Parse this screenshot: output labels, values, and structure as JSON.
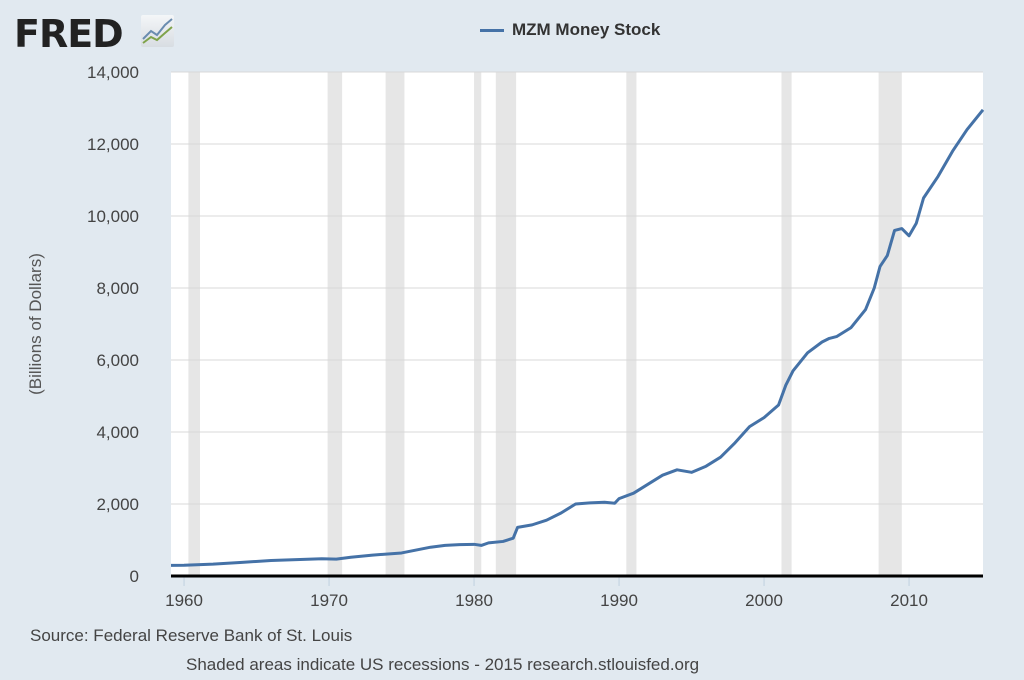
{
  "header": {
    "logo": "FRED",
    "legend": "MZM Money Stock"
  },
  "footer": {
    "source": "Source: Federal Reserve Bank of St. Louis",
    "note": "Shaded areas indicate US recessions - 2015 research.stlouisfed.org"
  },
  "chart_data": {
    "type": "line",
    "title": "MZM Money Stock",
    "xlabel": "",
    "ylabel": "(Billions of Dollars)",
    "xlim": [
      1959.1,
      2015.1
    ],
    "ylim": [
      0,
      14000
    ],
    "xticks": [
      1960,
      1970,
      1980,
      1990,
      2000,
      2010
    ],
    "yticks": [
      0,
      2000,
      4000,
      6000,
      8000,
      10000,
      12000,
      14000
    ],
    "ytick_labels": [
      "0",
      "2,000",
      "4,000",
      "6,000",
      "8,000",
      "10,000",
      "12,000",
      "14,000"
    ],
    "grid": true,
    "legend_position": "top-center",
    "line_color": "#4572a7",
    "recessions": [
      [
        1960.3,
        1961.1
      ],
      [
        1969.9,
        1970.9
      ],
      [
        1973.9,
        1975.2
      ],
      [
        1980.0,
        1980.5
      ],
      [
        1981.5,
        1982.9
      ],
      [
        1990.5,
        1991.2
      ],
      [
        2001.2,
        2001.9
      ],
      [
        2007.9,
        2009.5
      ]
    ],
    "series": [
      {
        "name": "MZM Money Stock",
        "points": [
          [
            1959.1,
            295
          ],
          [
            1960,
            300
          ],
          [
            1962,
            330
          ],
          [
            1964,
            380
          ],
          [
            1966,
            430
          ],
          [
            1968,
            460
          ],
          [
            1969.5,
            480
          ],
          [
            1970.5,
            470
          ],
          [
            1971.5,
            520
          ],
          [
            1973,
            580
          ],
          [
            1975,
            640
          ],
          [
            1976,
            720
          ],
          [
            1977,
            800
          ],
          [
            1978,
            850
          ],
          [
            1979,
            870
          ],
          [
            1980,
            880
          ],
          [
            1980.5,
            850
          ],
          [
            1981,
            920
          ],
          [
            1982,
            960
          ],
          [
            1982.7,
            1050
          ],
          [
            1983,
            1350
          ],
          [
            1984,
            1420
          ],
          [
            1985,
            1550
          ],
          [
            1986,
            1750
          ],
          [
            1987,
            2000
          ],
          [
            1988,
            2030
          ],
          [
            1989,
            2050
          ],
          [
            1989.7,
            2020
          ],
          [
            1990,
            2150
          ],
          [
            1991,
            2300
          ],
          [
            1992,
            2550
          ],
          [
            1993,
            2800
          ],
          [
            1994,
            2950
          ],
          [
            1995,
            2880
          ],
          [
            1996,
            3050
          ],
          [
            1997,
            3300
          ],
          [
            1998,
            3700
          ],
          [
            1999,
            4150
          ],
          [
            2000,
            4400
          ],
          [
            2001,
            4750
          ],
          [
            2001.5,
            5300
          ],
          [
            2002,
            5700
          ],
          [
            2003,
            6200
          ],
          [
            2004,
            6500
          ],
          [
            2004.5,
            6600
          ],
          [
            2005,
            6650
          ],
          [
            2006,
            6900
          ],
          [
            2007,
            7400
          ],
          [
            2007.6,
            8000
          ],
          [
            2008,
            8600
          ],
          [
            2008.5,
            8900
          ],
          [
            2009,
            9600
          ],
          [
            2009.5,
            9650
          ],
          [
            2010,
            9450
          ],
          [
            2010.5,
            9800
          ],
          [
            2011,
            10500
          ],
          [
            2012,
            11100
          ],
          [
            2013,
            11800
          ],
          [
            2014,
            12400
          ],
          [
            2015.1,
            12950
          ]
        ]
      }
    ]
  }
}
